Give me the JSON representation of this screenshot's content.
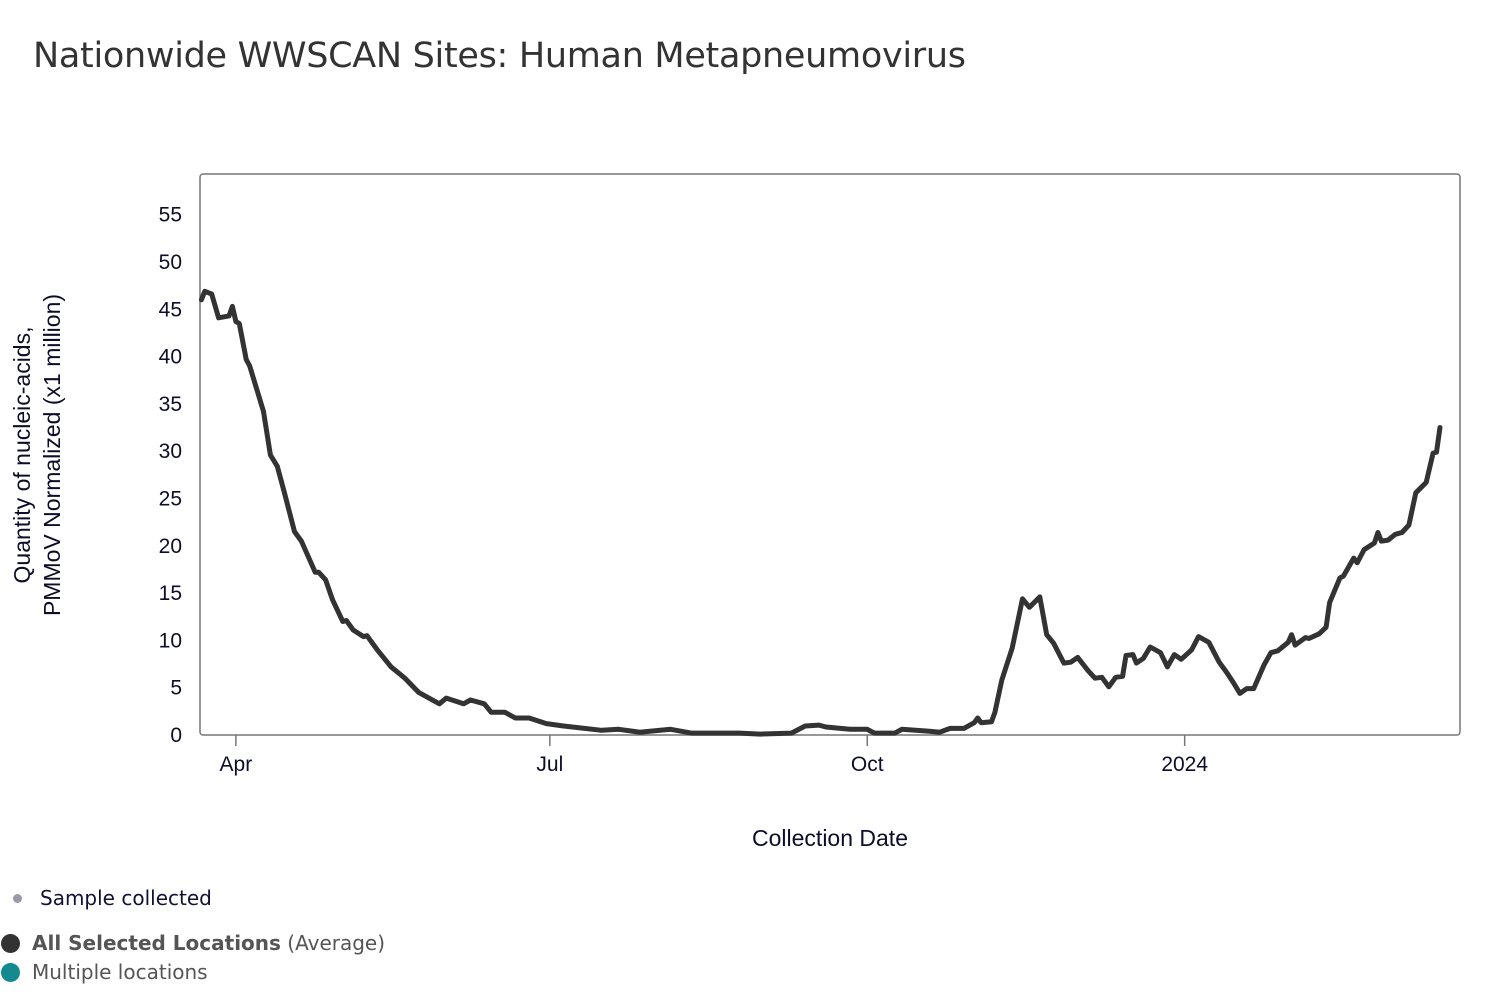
{
  "header": {
    "title": "Nationwide WWSCAN Sites: Human Metapneumovirus"
  },
  "legend": {
    "sample": "Sample collected",
    "average_bold": "All Selected Locations",
    "average_suffix": "(Average)",
    "multiple": "Multiple locations"
  },
  "colors": {
    "line": "#333333",
    "sample_dot": "#9a9aa8",
    "average_dot": "#333333",
    "multiple_dot": "#128a8f",
    "frame": "#777777"
  },
  "chart_data": {
    "type": "line",
    "title": "Nationwide WWSCAN Sites: Human Metapneumovirus",
    "xlabel": "Collection Date",
    "ylabel_lines": [
      "Quantity of nucleic-acids,",
      "PMMoV Normalized (x1 million)"
    ],
    "x_units": "days since 2023-04-01",
    "xlim": [
      -10.4,
      354.8
    ],
    "ylim": [
      0,
      59.3
    ],
    "x_ticks": [
      {
        "value": 0,
        "label": "Apr"
      },
      {
        "value": 91,
        "label": "Jul"
      },
      {
        "value": 183,
        "label": "Oct"
      },
      {
        "value": 275,
        "label": "2024"
      }
    ],
    "y_ticks": [
      0,
      5,
      10,
      15,
      20,
      25,
      30,
      35,
      40,
      45,
      50,
      55
    ],
    "grid": false,
    "series": [
      {
        "name": "All Selected Locations (Average)",
        "x": [
          -10,
          -9,
          -7,
          -5,
          -2,
          -1,
          0,
          1,
          3,
          4,
          8,
          10,
          12,
          14,
          17,
          19,
          23,
          24,
          26,
          28,
          31,
          32,
          34,
          37,
          38,
          41,
          45,
          49,
          53,
          59,
          61,
          66,
          68,
          72,
          74,
          78,
          81,
          85,
          90,
          95,
          106,
          111,
          117,
          126,
          132,
          146,
          152,
          161,
          165,
          169,
          171,
          178,
          183,
          185,
          191,
          193,
          201,
          204,
          207,
          211,
          214,
          215,
          216,
          219,
          220,
          222,
          225,
          228,
          230,
          233,
          235,
          237,
          240,
          242,
          244,
          247,
          249,
          251,
          253,
          255,
          257,
          258,
          260,
          261,
          263,
          265,
          268,
          270,
          272,
          274,
          277,
          279,
          282,
          285,
          287,
          289,
          291,
          293,
          295,
          298,
          300,
          302,
          305,
          306,
          307,
          310,
          311,
          314,
          316,
          317,
          320,
          321,
          324,
          325,
          327,
          330,
          331,
          332,
          334,
          336,
          338,
          340,
          342,
          345,
          347,
          348,
          349
        ],
        "y": [
          46.0,
          46.9,
          46.6,
          44.1,
          44.3,
          45.3,
          43.7,
          43.5,
          39.7,
          39.0,
          34.2,
          29.6,
          28.4,
          25.7,
          21.5,
          20.5,
          17.2,
          17.2,
          16.4,
          14.3,
          12.0,
          12.1,
          11.1,
          10.4,
          10.5,
          9.0,
          7.2,
          6.0,
          4.5,
          3.3,
          3.9,
          3.3,
          3.7,
          3.3,
          2.4,
          2.4,
          1.8,
          1.8,
          1.2,
          0.95,
          0.5,
          0.6,
          0.3,
          0.6,
          0.2,
          0.2,
          0.1,
          0.2,
          0.95,
          1.05,
          0.85,
          0.6,
          0.6,
          0.2,
          0.2,
          0.6,
          0.4,
          0.3,
          0.7,
          0.7,
          1.3,
          1.8,
          1.3,
          1.4,
          2.4,
          5.8,
          9.2,
          14.4,
          13.5,
          14.6,
          10.6,
          9.7,
          7.6,
          7.7,
          8.2,
          6.8,
          6.0,
          6.1,
          5.1,
          6.1,
          6.2,
          8.4,
          8.5,
          7.6,
          8.1,
          9.3,
          8.7,
          7.2,
          8.5,
          8.0,
          9.0,
          10.4,
          9.8,
          7.7,
          6.7,
          5.6,
          4.4,
          4.9,
          4.9,
          7.4,
          8.7,
          8.9,
          9.8,
          10.6,
          9.5,
          10.3,
          10.2,
          10.7,
          11.4,
          14.0,
          16.6,
          16.8,
          18.7,
          18.2,
          19.6,
          20.3,
          21.4,
          20.5,
          20.6,
          21.2,
          21.4,
          22.2,
          25.6,
          26.7,
          29.8,
          29.9,
          32.5
        ]
      }
    ]
  }
}
